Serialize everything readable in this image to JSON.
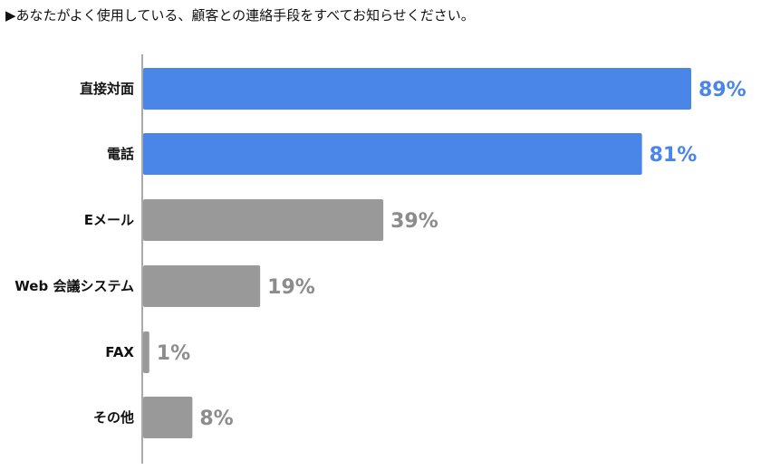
{
  "chart_data": {
    "type": "bar",
    "orientation": "horizontal",
    "title": "▶あなたがよく使用している、顧客との連絡手段をすべてお知らせください。",
    "categories": [
      "直接対面",
      "電話",
      "Eメール",
      "Web 会議システム",
      "FAX",
      "その他"
    ],
    "values": [
      89,
      81,
      39,
      19,
      1,
      8
    ],
    "value_labels": [
      "89%",
      "81%",
      "39%",
      "19%",
      "1%",
      "8%"
    ],
    "unit": "%",
    "xlim": [
      0,
      100
    ],
    "grid": false,
    "legend": "none",
    "colors": {
      "highlight": "#4a86e8",
      "default": "#999999",
      "highlight_label": "#4a86e8",
      "default_label": "#8c8c8c"
    },
    "highlighted": [
      true,
      true,
      false,
      false,
      false,
      false
    ]
  }
}
